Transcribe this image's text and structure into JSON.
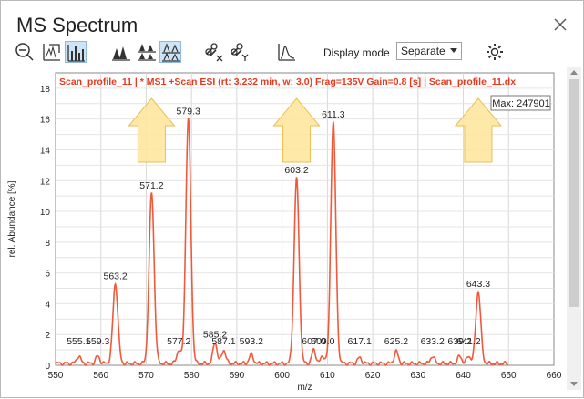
{
  "window": {
    "title": "MS Spectrum"
  },
  "toolbar": {
    "display_mode_label": "Display mode",
    "display_mode_value": "Separate",
    "icons": [
      "zoom-out-icon",
      "autoscale-icon",
      "bar-spectrum-icon",
      "overlay-peaks-icon",
      "stack-peaks-icon",
      "separate-peaks-icon",
      "unlink-x-icon",
      "unlink-y-icon",
      "profile-line-icon",
      "settings-gear-icon"
    ]
  },
  "colors": {
    "trace": "#f05a3c",
    "header_text": "#e8391e",
    "arrow_fill": "#ffe7a0",
    "arrow_stroke": "#e9b940",
    "active_tool": "#cde4f7"
  },
  "chart_data": {
    "type": "line",
    "header": "Scan_profile_11 | * MS1 +Scan ESI (rt: 3.232 min, w: 3.0) Frag=135V Gain=0.8 [s] | Scan_profile_11.dx",
    "max_label": "Max: 247901",
    "xlabel": "m/z",
    "ylabel": "rel. Abundance [%]",
    "xlim": [
      550,
      660
    ],
    "ylim": [
      0,
      19
    ],
    "x_ticks": [
      "550",
      "560",
      "570",
      "580",
      "590",
      "600",
      "610",
      "620",
      "630",
      "640",
      "650",
      "660"
    ],
    "y_ticks": [
      "0",
      "2",
      "4",
      "6",
      "8",
      "10",
      "12",
      "14",
      "16",
      "18"
    ],
    "grid": true,
    "peaks": [
      {
        "x": 555.1,
        "y": 0.6,
        "label": "555.1"
      },
      {
        "x": 559.3,
        "y": 0.6,
        "label": "559.3"
      },
      {
        "x": 563.2,
        "y": 5.3,
        "label": "563.2"
      },
      {
        "x": 571.2,
        "y": 11.2,
        "label": "571.2"
      },
      {
        "x": 577.2,
        "y": 1.0,
        "label": "577.2"
      },
      {
        "x": 579.3,
        "y": 16.0,
        "label": "579.3"
      },
      {
        "x": 585.2,
        "y": 1.5,
        "label": "585.2"
      },
      {
        "x": 587.1,
        "y": 1.0,
        "label": "587.1"
      },
      {
        "x": 593.2,
        "y": 0.7,
        "label": "593.2"
      },
      {
        "x": 603.2,
        "y": 12.2,
        "label": "603.2"
      },
      {
        "x": 607.0,
        "y": 1.0,
        "label": "607.0"
      },
      {
        "x": 609.0,
        "y": 0.6,
        "label": "609.0"
      },
      {
        "x": 611.3,
        "y": 15.8,
        "label": "611.3"
      },
      {
        "x": 617.1,
        "y": 0.5,
        "label": "617.1"
      },
      {
        "x": 625.2,
        "y": 0.9,
        "label": "625.2"
      },
      {
        "x": 633.2,
        "y": 0.6,
        "label": "633.2"
      },
      {
        "x": 639.2,
        "y": 0.6,
        "label": "639.2"
      },
      {
        "x": 641.2,
        "y": 0.6,
        "label": "641.2"
      },
      {
        "x": 643.3,
        "y": 4.8,
        "label": "643.3"
      }
    ],
    "annotated_peaks": [
      "571.2",
      "603.2",
      "643.3"
    ]
  }
}
